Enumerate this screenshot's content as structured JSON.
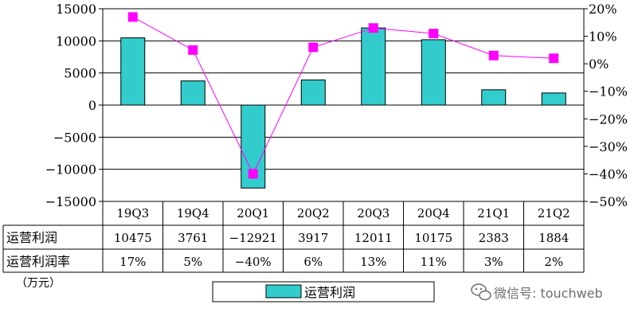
{
  "chart_data": {
    "type": "bar",
    "categories": [
      "19Q3",
      "19Q4",
      "20Q1",
      "20Q2",
      "20Q3",
      "20Q4",
      "21Q1",
      "21Q2"
    ],
    "series": [
      {
        "name": "运营利润",
        "kind": "bar",
        "axis": "left",
        "color": "#33CCCC",
        "values": [
          10475,
          3761,
          -12921,
          3917,
          12011,
          10175,
          2383,
          1884
        ]
      },
      {
        "kind": "line",
        "axis": "right",
        "color": "#FF00FF",
        "values": [
          17,
          5,
          -40,
          6,
          13,
          11,
          3,
          2
        ]
      }
    ],
    "left_axis": {
      "min": -15000,
      "max": 15000,
      "step": 5000
    },
    "right_axis": {
      "min": -50,
      "max": 20,
      "step": 10
    },
    "left_tick_labels": [
      "15000",
      "10000",
      "5000",
      "0",
      "−5000",
      "−10000",
      "−15000"
    ],
    "right_tick_labels": [
      "20%",
      "10%",
      "0%",
      "−10%",
      "−20%",
      "−30%",
      "−40%",
      "−50%"
    ],
    "grid": true,
    "legend": {
      "position": "bottom",
      "label": "运营利润"
    }
  },
  "table": {
    "rows": [
      {
        "label": "运营利润",
        "values": [
          "10475",
          "3761",
          "−12921",
          "3917",
          "12011",
          "10175",
          "2383",
          "1884"
        ]
      },
      {
        "label": "运营利润率",
        "values": [
          "17%",
          "5%",
          "−40%",
          "6%",
          "13%",
          "11%",
          "3%",
          "2%"
        ]
      }
    ]
  },
  "unit_label": "（万元）",
  "watermark": "微信号: touchweb"
}
